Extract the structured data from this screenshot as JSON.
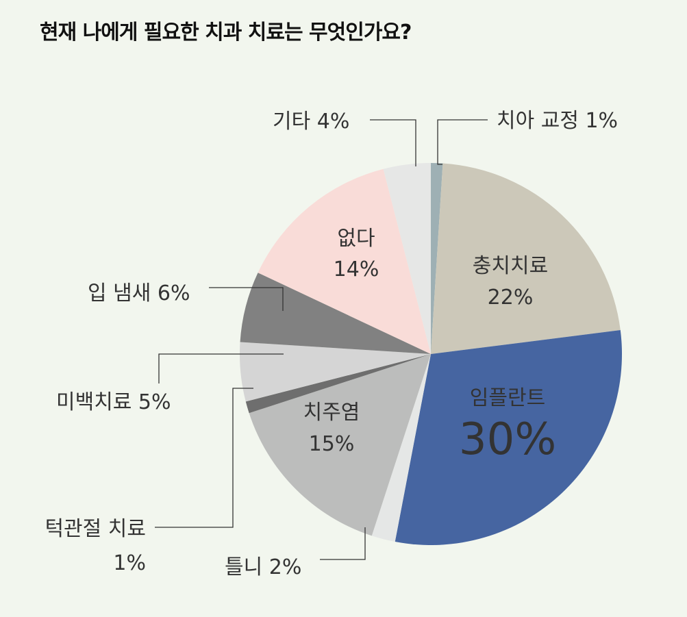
{
  "chart_data": {
    "type": "pie",
    "title": "현재 나에게 필요한 치과 치료는 무엇인가요?",
    "slices": [
      {
        "label": "치아 교정",
        "value": 1,
        "value_label": "1%",
        "color": "#9eb0b4"
      },
      {
        "label": "충치치료",
        "value": 22,
        "value_label": "22%",
        "color": "#ccc8b9"
      },
      {
        "label": "임플란트",
        "value": 30,
        "value_label": "30%",
        "color": "#4665a1"
      },
      {
        "label": "틀니",
        "value": 2,
        "value_label": "2%",
        "color": "#e5e7e6"
      },
      {
        "label": "치주염",
        "value": 15,
        "value_label": "15%",
        "color": "#bcbdbc"
      },
      {
        "label": "턱관절 치료",
        "value": 1,
        "value_label": "1%",
        "color": "#6e6e6e"
      },
      {
        "label": "미백치료",
        "value": 5,
        "value_label": "5%",
        "color": "#d5d5d5"
      },
      {
        "label": "입 냄새",
        "value": 6,
        "value_label": "6%",
        "color": "#818181"
      },
      {
        "label": "없다",
        "value": 14,
        "value_label": "14%",
        "color": "#f9dcd8"
      },
      {
        "label": "기타",
        "value": 4,
        "value_label": "4%",
        "color": "#e6e7e6"
      }
    ],
    "legend": "none"
  }
}
